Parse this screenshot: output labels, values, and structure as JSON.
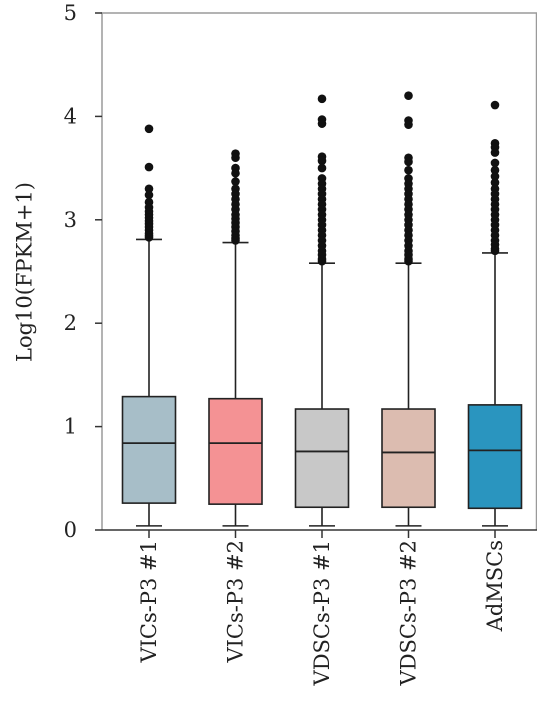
{
  "chart_data": {
    "type": "boxplot",
    "title": "",
    "ylabel": "Log10(FPKM+1)",
    "xlabel": "",
    "ylim": [
      0,
      5
    ],
    "yticks": [
      0,
      1,
      2,
      3,
      4,
      5
    ],
    "grid": false,
    "legend": "none",
    "categories": [
      "VICs-P3 #1",
      "VICs-P3 #2",
      "VDSCs-P3 #1",
      "VDSCs-P3 #2",
      "AdMSCs"
    ],
    "colors": [
      "#a7bec8",
      "#f49294",
      "#c8c8c8",
      "#dcbcb0",
      "#2a95bf"
    ],
    "boxes": [
      {
        "min": 0.04,
        "q1": 0.26,
        "median": 0.84,
        "q3": 1.29,
        "max": 2.81,
        "outliers": [
          3.88,
          3.51,
          3.3,
          3.24,
          3.17,
          3.12,
          3.08,
          3.05,
          3.02,
          2.99,
          2.96,
          2.93,
          2.9,
          2.87,
          2.85,
          2.83
        ]
      },
      {
        "min": 0.04,
        "q1": 0.25,
        "median": 0.84,
        "q3": 1.27,
        "max": 2.78,
        "outliers": [
          3.64,
          3.6,
          3.5,
          3.45,
          3.37,
          3.3,
          3.25,
          3.2,
          3.15,
          3.1,
          3.05,
          3.01,
          2.97,
          2.93,
          2.89,
          2.85,
          2.82,
          2.8
        ]
      },
      {
        "min": 0.04,
        "q1": 0.22,
        "median": 0.76,
        "q3": 1.17,
        "max": 2.58,
        "outliers": [
          4.17,
          3.97,
          3.93,
          3.61,
          3.57,
          3.5,
          3.4,
          3.35,
          3.3,
          3.25,
          3.2,
          3.15,
          3.1,
          3.05,
          3.0,
          2.95,
          2.9,
          2.85,
          2.8,
          2.75,
          2.7,
          2.66,
          2.62,
          2.6
        ]
      },
      {
        "min": 0.04,
        "q1": 0.22,
        "median": 0.75,
        "q3": 1.17,
        "max": 2.58,
        "outliers": [
          4.2,
          3.96,
          3.92,
          3.6,
          3.56,
          3.48,
          3.4,
          3.35,
          3.3,
          3.25,
          3.2,
          3.15,
          3.1,
          3.05,
          3.0,
          2.95,
          2.9,
          2.85,
          2.8,
          2.75,
          2.7,
          2.66,
          2.62,
          2.6
        ]
      },
      {
        "min": 0.04,
        "q1": 0.21,
        "median": 0.77,
        "q3": 1.21,
        "max": 2.68,
        "outliers": [
          4.11,
          3.74,
          3.7,
          3.65,
          3.55,
          3.48,
          3.42,
          3.36,
          3.3,
          3.25,
          3.2,
          3.15,
          3.1,
          3.05,
          3.0,
          2.95,
          2.9,
          2.85,
          2.8,
          2.76,
          2.72,
          2.7
        ]
      }
    ]
  }
}
